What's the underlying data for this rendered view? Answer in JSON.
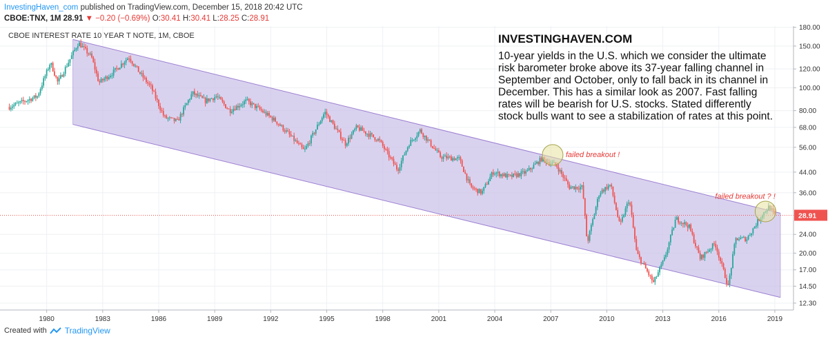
{
  "header": {
    "author": "InvestingHaven_com",
    "published_text": "published on TradingView.com, December 15, 2018 20:42 UTC",
    "ticker": "CBOE:TNX, 1M",
    "last": "28.91",
    "change": "−0.20 (−0.69%)",
    "open_label": "O:",
    "open": "30.41",
    "high_label": "H:",
    "high": "30.41",
    "low_label": "L:",
    "low": "28.25",
    "close_label": "C:",
    "close": "28.91"
  },
  "footer": {
    "created_with": "Created with",
    "brand": "TradingView"
  },
  "chart_data": {
    "type": "candlestick",
    "title": "CBOE INTEREST RATE 10 YEAR T NOTE, 1M, CBOE",
    "y_scale": "log",
    "ylim": [
      11.5,
      182
    ],
    "xlim": [
      1977.5,
      2020.0
    ],
    "x_ticks": [
      1980,
      1983,
      1986,
      1989,
      1992,
      1995,
      1998,
      2001,
      2004,
      2007,
      2010,
      2013,
      2016,
      2019
    ],
    "y_ticks": [
      "180.00",
      "150.00",
      "120.00",
      "100.00",
      "80.00",
      "68.00",
      "56.00",
      "44.00",
      "36.00",
      "24.00",
      "20.00",
      "17.00",
      "14.50",
      "12.30"
    ],
    "y_tick_values": [
      180,
      150,
      120,
      100,
      80,
      68,
      56,
      44,
      36,
      24,
      20,
      17,
      14.5,
      12.3
    ],
    "last_price": {
      "value": 28.91,
      "label": "28.91"
    },
    "channel": {
      "start_date": 1981.4,
      "end_date": 2019.3,
      "upper": [
        160,
        29.5
      ],
      "lower": [
        70,
        13.0
      ]
    },
    "anchors": [
      [
        1978.0,
        83
      ],
      [
        1979.5,
        92
      ],
      [
        1980.2,
        128
      ],
      [
        1980.6,
        105
      ],
      [
        1981.7,
        155
      ],
      [
        1982.4,
        135
      ],
      [
        1982.8,
        105
      ],
      [
        1983.5,
        115
      ],
      [
        1984.4,
        135
      ],
      [
        1985.0,
        115
      ],
      [
        1985.6,
        100
      ],
      [
        1986.3,
        75
      ],
      [
        1987.0,
        72
      ],
      [
        1987.8,
        95
      ],
      [
        1988.5,
        88
      ],
      [
        1989.1,
        92
      ],
      [
        1989.8,
        80
      ],
      [
        1990.7,
        88
      ],
      [
        1991.5,
        80
      ],
      [
        1992.3,
        72
      ],
      [
        1993.1,
        62
      ],
      [
        1993.8,
        54
      ],
      [
        1994.9,
        79
      ],
      [
        1996.0,
        58
      ],
      [
        1996.6,
        68
      ],
      [
        1997.8,
        60
      ],
      [
        1998.8,
        45
      ],
      [
        1999.4,
        58
      ],
      [
        2000.0,
        66
      ],
      [
        2001.1,
        51
      ],
      [
        2002.1,
        50
      ],
      [
        2002.7,
        38
      ],
      [
        2003.3,
        36
      ],
      [
        2003.9,
        44
      ],
      [
        2004.8,
        42
      ],
      [
        2005.7,
        44
      ],
      [
        2006.5,
        50
      ],
      [
        2007.3,
        47
      ],
      [
        2008.0,
        38
      ],
      [
        2008.7,
        38
      ],
      [
        2008.95,
        22
      ],
      [
        2009.6,
        36
      ],
      [
        2010.2,
        39
      ],
      [
        2010.7,
        26
      ],
      [
        2011.2,
        34
      ],
      [
        2011.6,
        20
      ],
      [
        2012.5,
        15
      ],
      [
        2013.1,
        19
      ],
      [
        2013.7,
        28
      ],
      [
        2014.4,
        26
      ],
      [
        2015.0,
        19
      ],
      [
        2015.8,
        22
      ],
      [
        2016.5,
        14.5
      ],
      [
        2016.9,
        23
      ],
      [
        2017.5,
        23
      ],
      [
        2018.3,
        29
      ],
      [
        2018.7,
        31.5
      ],
      [
        2019.0,
        28.9
      ]
    ],
    "ellipses": [
      {
        "date": 2007.1,
        "value": 52
      },
      {
        "date": 2018.5,
        "value": 30
      }
    ],
    "annotations": [
      {
        "text": "failed breakout !",
        "date": 2007.8,
        "value": 51
      },
      {
        "text": "failed breakout ? !",
        "date": 2015.8,
        "value": 34
      }
    ],
    "text_box": {
      "heading": "INVESTINGHAVEN.COM",
      "lines": [
        "10-year yields in the U.S. which we consider the ultimate",
        "risk barometer broke above its 37-year falling channel in",
        "September and October, only to fall back in its channel in",
        "December. This has a similar look as 2007. Fast falling",
        "rates will be bearish for U.S. stocks. Stated differently",
        "stock bulls want to see a stabilization of rates at this point."
      ]
    }
  },
  "colors": {
    "up": "#26a69a",
    "down": "#ef5350",
    "channel_fill": "#c9bfe8",
    "channel_line": "#9c7fd1",
    "last_line": "#ef5350",
    "annotation": "#e53935",
    "ellipse_fill": "#e8e4a0"
  }
}
